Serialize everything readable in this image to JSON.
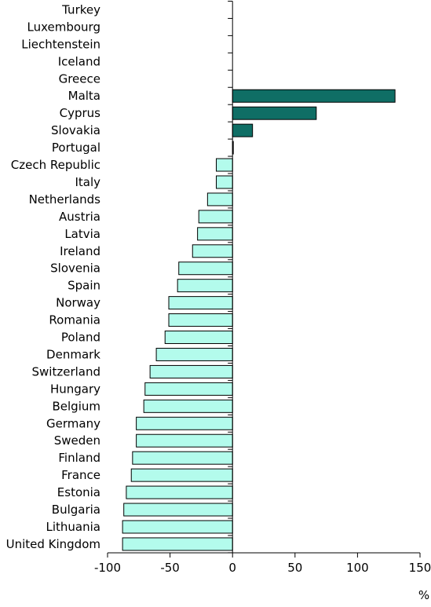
{
  "chart_data": {
    "type": "bar",
    "orientation": "horizontal",
    "title": "",
    "xlabel": "",
    "x_unit": "%",
    "xlim": [
      -100,
      150
    ],
    "x_ticks": [
      -100,
      -50,
      0,
      50,
      100,
      150
    ],
    "grid": false,
    "legend": "none",
    "colors": {
      "positive": "#0f6e65",
      "negative": "#b3fbec",
      "bar_stroke": "#000000"
    },
    "categories": [
      "Turkey",
      "Luxembourg",
      "Liechtenstein",
      "Iceland",
      "Greece",
      "Malta",
      "Cyprus",
      "Slovakia",
      "Portugal",
      "Czech Republic",
      "Italy",
      "Netherlands",
      "Austria",
      "Latvia",
      "Ireland",
      "Slovenia",
      "Spain",
      "Norway",
      "Romania",
      "Poland",
      "Denmark",
      "Switzerland",
      "Hungary",
      "Belgium",
      "Germany",
      "Sweden",
      "Finland",
      "France",
      "Estonia",
      "Bulgaria",
      "Lithuania",
      "United Kingdom"
    ],
    "values": [
      0,
      0,
      0,
      0,
      0,
      130,
      67,
      16,
      0.5,
      -13,
      -13,
      -20,
      -27,
      -28,
      -32,
      -43,
      -44,
      -51,
      -51,
      -54,
      -61,
      -66,
      -70,
      -71,
      -77,
      -77,
      -80,
      -81,
      -85,
      -87,
      -88,
      -88
    ]
  }
}
